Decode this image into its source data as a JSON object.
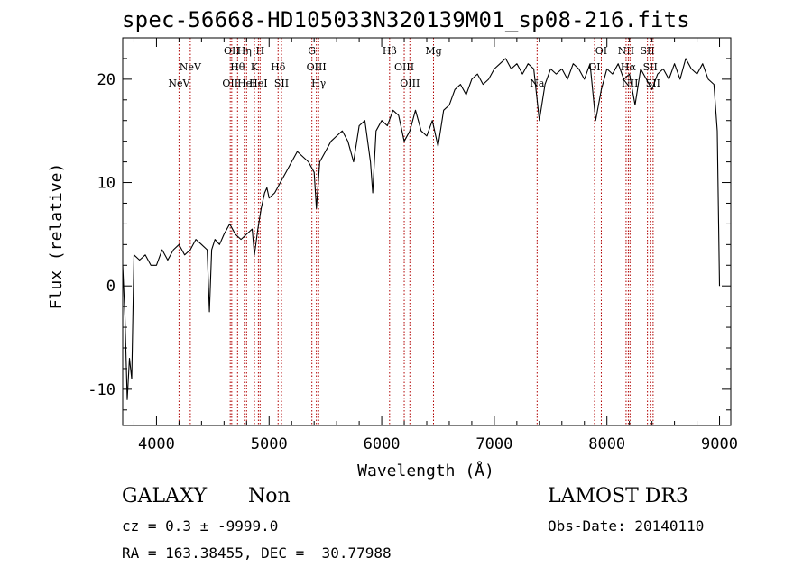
{
  "title": "spec-56668-HD105033N320139M01_sp08-216.fits",
  "info": {
    "class": "GALAXY",
    "subclass": "Non",
    "cz_line": "cz = 0.3 ± -9999.0",
    "radec_line": "RA = 163.38455, DEC =  30.77988",
    "survey": "LAMOST DR3",
    "obs_date": "Obs-Date: 20140110"
  },
  "chart_data": {
    "type": "line",
    "xlabel": "Wavelength (Å)",
    "ylabel": "Flux (relative)",
    "xlim": [
      3700,
      9100
    ],
    "ylim": [
      -13.5,
      24
    ],
    "xticks": [
      4000,
      5000,
      6000,
      7000,
      8000,
      9000
    ],
    "yticks": [
      -10,
      0,
      10,
      20
    ],
    "series": [
      {
        "color": "#000000",
        "x": [
          3700,
          3720,
          3740,
          3760,
          3780,
          3800,
          3850,
          3900,
          3950,
          4000,
          4050,
          4100,
          4150,
          4200,
          4250,
          4300,
          4350,
          4400,
          4450,
          4470,
          4490,
          4520,
          4560,
          4600,
          4650,
          4700,
          4750,
          4800,
          4850,
          4870,
          4900,
          4930,
          4960,
          4980,
          5000,
          5050,
          5100,
          5150,
          5200,
          5250,
          5300,
          5350,
          5400,
          5420,
          5450,
          5500,
          5550,
          5600,
          5650,
          5700,
          5750,
          5800,
          5850,
          5900,
          5920,
          5950,
          6000,
          6050,
          6100,
          6150,
          6200,
          6250,
          6300,
          6350,
          6400,
          6450,
          6500,
          6550,
          6600,
          6650,
          6700,
          6750,
          6800,
          6850,
          6900,
          6950,
          7000,
          7050,
          7100,
          7150,
          7200,
          7250,
          7300,
          7350,
          7400,
          7450,
          7500,
          7550,
          7600,
          7650,
          7700,
          7750,
          7800,
          7850,
          7900,
          7950,
          8000,
          8050,
          8100,
          8150,
          8200,
          8250,
          8300,
          8350,
          8400,
          8450,
          8500,
          8550,
          8600,
          8650,
          8700,
          8750,
          8800,
          8850,
          8900,
          8950,
          8980,
          9000
        ],
        "y": [
          2,
          -3,
          -11,
          -7,
          -9,
          3,
          2.5,
          3,
          2,
          2,
          3.5,
          2.5,
          3.5,
          4,
          3,
          3.5,
          4.5,
          4,
          3.5,
          -2.5,
          3.5,
          4.5,
          4,
          5,
          6,
          5,
          4.5,
          5,
          5.5,
          3,
          5.5,
          7.5,
          9,
          9.5,
          8.5,
          9,
          10,
          11,
          12,
          13,
          12.5,
          12,
          11,
          7.5,
          12,
          13,
          14,
          14.5,
          15,
          14,
          12,
          15.5,
          16,
          12,
          9,
          15,
          16,
          15.5,
          17,
          16.5,
          14,
          15,
          17,
          15,
          14.5,
          16,
          13.5,
          17,
          17.5,
          19,
          19.5,
          18.5,
          20,
          20.5,
          19.5,
          20,
          21,
          21.5,
          22,
          21,
          21.5,
          20.5,
          21.5,
          21,
          16,
          19.5,
          21,
          20.5,
          21,
          20,
          21.5,
          21,
          20,
          21.5,
          16,
          19,
          21,
          20.5,
          21.5,
          20,
          20.5,
          17.5,
          21,
          20,
          19,
          20.5,
          21,
          20,
          21.5,
          20,
          22,
          21,
          20.5,
          21.5,
          20,
          19.5,
          15,
          0
        ]
      }
    ],
    "lines": [
      {
        "label": "NeV",
        "wl": 4200,
        "row": 2
      },
      {
        "label": "NeV",
        "wl": 4300,
        "row": 1
      },
      {
        "label": "OII",
        "wl": 4655,
        "row": 2
      },
      {
        "label": "OII",
        "wl": 4668,
        "row": 0
      },
      {
        "label": "Hθ",
        "wl": 4720,
        "row": 1
      },
      {
        "label": "Hη",
        "wl": 4780,
        "row": 0
      },
      {
        "label": "HeI",
        "wl": 4800,
        "row": 2
      },
      {
        "label": "K",
        "wl": 4870,
        "row": 1
      },
      {
        "label": "H",
        "wl": 4920,
        "row": 0
      },
      {
        "label": "HeI",
        "wl": 4905,
        "row": 2
      },
      {
        "label": "Hδ",
        "wl": 5080,
        "row": 1
      },
      {
        "label": "SII",
        "wl": 5110,
        "row": 2
      },
      {
        "label": "G",
        "wl": 5380,
        "row": 0
      },
      {
        "label": "OIII",
        "wl": 5420,
        "row": 1
      },
      {
        "label": "Hγ",
        "wl": 5440,
        "row": 2
      },
      {
        "label": "Hβ",
        "wl": 6070,
        "row": 0
      },
      {
        "label": "OIII",
        "wl": 6200,
        "row": 1
      },
      {
        "label": "OIII",
        "wl": 6250,
        "row": 2
      },
      {
        "label": "Mg",
        "wl": 6460,
        "row": 0
      },
      {
        "label": "Na",
        "wl": 7380,
        "row": 2
      },
      {
        "label": "OI",
        "wl": 7890,
        "row": 1
      },
      {
        "label": "OI",
        "wl": 7950,
        "row": 0
      },
      {
        "label": "NII",
        "wl": 8170,
        "row": 0
      },
      {
        "label": "Hα",
        "wl": 8190,
        "row": 1
      },
      {
        "label": "NII",
        "wl": 8205,
        "row": 2
      },
      {
        "label": "SII",
        "wl": 8360,
        "row": 0
      },
      {
        "label": "SII",
        "wl": 8385,
        "row": 1
      },
      {
        "label": "SII",
        "wl": 8410,
        "row": 2
      }
    ]
  }
}
